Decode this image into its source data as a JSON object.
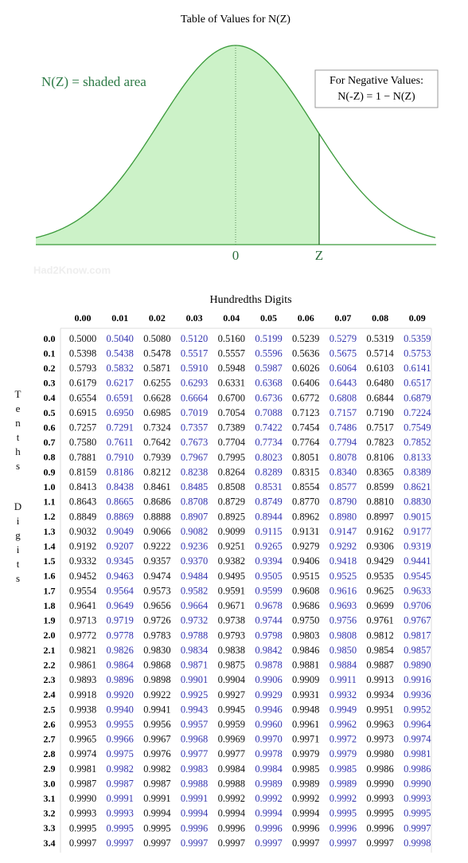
{
  "title": "Table of Values for N(Z)",
  "diagram": {
    "label": "N(Z) = shaded area",
    "note_title": "For Negative Values:",
    "note_formula": "N(-Z) = 1 − N(Z)",
    "axis_labels": [
      "0",
      "Z"
    ]
  },
  "watermark": "Had2Know.com",
  "table": {
    "column_title": "Hundredths Digits",
    "row_title": [
      "Tenths",
      "Digits"
    ],
    "columns": [
      "0.00",
      "0.01",
      "0.02",
      "0.03",
      "0.04",
      "0.05",
      "0.06",
      "0.07",
      "0.08",
      "0.09"
    ],
    "rows": [
      {
        "label": "0.0",
        "values": [
          "0.5000",
          "0.5040",
          "0.5080",
          "0.5120",
          "0.5160",
          "0.5199",
          "0.5239",
          "0.5279",
          "0.5319",
          "0.5359"
        ]
      },
      {
        "label": "0.1",
        "values": [
          "0.5398",
          "0.5438",
          "0.5478",
          "0.5517",
          "0.5557",
          "0.5596",
          "0.5636",
          "0.5675",
          "0.5714",
          "0.5753"
        ]
      },
      {
        "label": "0.2",
        "values": [
          "0.5793",
          "0.5832",
          "0.5871",
          "0.5910",
          "0.5948",
          "0.5987",
          "0.6026",
          "0.6064",
          "0.6103",
          "0.6141"
        ]
      },
      {
        "label": "0.3",
        "values": [
          "0.6179",
          "0.6217",
          "0.6255",
          "0.6293",
          "0.6331",
          "0.6368",
          "0.6406",
          "0.6443",
          "0.6480",
          "0.6517"
        ]
      },
      {
        "label": "0.4",
        "values": [
          "0.6554",
          "0.6591",
          "0.6628",
          "0.6664",
          "0.6700",
          "0.6736",
          "0.6772",
          "0.6808",
          "0.6844",
          "0.6879"
        ]
      },
      {
        "label": "0.5",
        "values": [
          "0.6915",
          "0.6950",
          "0.6985",
          "0.7019",
          "0.7054",
          "0.7088",
          "0.7123",
          "0.7157",
          "0.7190",
          "0.7224"
        ]
      },
      {
        "label": "0.6",
        "values": [
          "0.7257",
          "0.7291",
          "0.7324",
          "0.7357",
          "0.7389",
          "0.7422",
          "0.7454",
          "0.7486",
          "0.7517",
          "0.7549"
        ]
      },
      {
        "label": "0.7",
        "values": [
          "0.7580",
          "0.7611",
          "0.7642",
          "0.7673",
          "0.7704",
          "0.7734",
          "0.7764",
          "0.7794",
          "0.7823",
          "0.7852"
        ]
      },
      {
        "label": "0.8",
        "values": [
          "0.7881",
          "0.7910",
          "0.7939",
          "0.7967",
          "0.7995",
          "0.8023",
          "0.8051",
          "0.8078",
          "0.8106",
          "0.8133"
        ]
      },
      {
        "label": "0.9",
        "values": [
          "0.8159",
          "0.8186",
          "0.8212",
          "0.8238",
          "0.8264",
          "0.8289",
          "0.8315",
          "0.8340",
          "0.8365",
          "0.8389"
        ]
      },
      {
        "label": "1.0",
        "values": [
          "0.8413",
          "0.8438",
          "0.8461",
          "0.8485",
          "0.8508",
          "0.8531",
          "0.8554",
          "0.8577",
          "0.8599",
          "0.8621"
        ]
      },
      {
        "label": "1.1",
        "values": [
          "0.8643",
          "0.8665",
          "0.8686",
          "0.8708",
          "0.8729",
          "0.8749",
          "0.8770",
          "0.8790",
          "0.8810",
          "0.8830"
        ]
      },
      {
        "label": "1.2",
        "values": [
          "0.8849",
          "0.8869",
          "0.8888",
          "0.8907",
          "0.8925",
          "0.8944",
          "0.8962",
          "0.8980",
          "0.8997",
          "0.9015"
        ]
      },
      {
        "label": "1.3",
        "values": [
          "0.9032",
          "0.9049",
          "0.9066",
          "0.9082",
          "0.9099",
          "0.9115",
          "0.9131",
          "0.9147",
          "0.9162",
          "0.9177"
        ]
      },
      {
        "label": "1.4",
        "values": [
          "0.9192",
          "0.9207",
          "0.9222",
          "0.9236",
          "0.9251",
          "0.9265",
          "0.9279",
          "0.9292",
          "0.9306",
          "0.9319"
        ]
      },
      {
        "label": "1.5",
        "values": [
          "0.9332",
          "0.9345",
          "0.9357",
          "0.9370",
          "0.9382",
          "0.9394",
          "0.9406",
          "0.9418",
          "0.9429",
          "0.9441"
        ]
      },
      {
        "label": "1.6",
        "values": [
          "0.9452",
          "0.9463",
          "0.9474",
          "0.9484",
          "0.9495",
          "0.9505",
          "0.9515",
          "0.9525",
          "0.9535",
          "0.9545"
        ]
      },
      {
        "label": "1.7",
        "values": [
          "0.9554",
          "0.9564",
          "0.9573",
          "0.9582",
          "0.9591",
          "0.9599",
          "0.9608",
          "0.9616",
          "0.9625",
          "0.9633"
        ]
      },
      {
        "label": "1.8",
        "values": [
          "0.9641",
          "0.9649",
          "0.9656",
          "0.9664",
          "0.9671",
          "0.9678",
          "0.9686",
          "0.9693",
          "0.9699",
          "0.9706"
        ]
      },
      {
        "label": "1.9",
        "values": [
          "0.9713",
          "0.9719",
          "0.9726",
          "0.9732",
          "0.9738",
          "0.9744",
          "0.9750",
          "0.9756",
          "0.9761",
          "0.9767"
        ]
      },
      {
        "label": "2.0",
        "values": [
          "0.9772",
          "0.9778",
          "0.9783",
          "0.9788",
          "0.9793",
          "0.9798",
          "0.9803",
          "0.9808",
          "0.9812",
          "0.9817"
        ]
      },
      {
        "label": "2.1",
        "values": [
          "0.9821",
          "0.9826",
          "0.9830",
          "0.9834",
          "0.9838",
          "0.9842",
          "0.9846",
          "0.9850",
          "0.9854",
          "0.9857"
        ]
      },
      {
        "label": "2.2",
        "values": [
          "0.9861",
          "0.9864",
          "0.9868",
          "0.9871",
          "0.9875",
          "0.9878",
          "0.9881",
          "0.9884",
          "0.9887",
          "0.9890"
        ]
      },
      {
        "label": "2.3",
        "values": [
          "0.9893",
          "0.9896",
          "0.9898",
          "0.9901",
          "0.9904",
          "0.9906",
          "0.9909",
          "0.9911",
          "0.9913",
          "0.9916"
        ]
      },
      {
        "label": "2.4",
        "values": [
          "0.9918",
          "0.9920",
          "0.9922",
          "0.9925",
          "0.9927",
          "0.9929",
          "0.9931",
          "0.9932",
          "0.9934",
          "0.9936"
        ]
      },
      {
        "label": "2.5",
        "values": [
          "0.9938",
          "0.9940",
          "0.9941",
          "0.9943",
          "0.9945",
          "0.9946",
          "0.9948",
          "0.9949",
          "0.9951",
          "0.9952"
        ]
      },
      {
        "label": "2.6",
        "values": [
          "0.9953",
          "0.9955",
          "0.9956",
          "0.9957",
          "0.9959",
          "0.9960",
          "0.9961",
          "0.9962",
          "0.9963",
          "0.9964"
        ]
      },
      {
        "label": "2.7",
        "values": [
          "0.9965",
          "0.9966",
          "0.9967",
          "0.9968",
          "0.9969",
          "0.9970",
          "0.9971",
          "0.9972",
          "0.9973",
          "0.9974"
        ]
      },
      {
        "label": "2.8",
        "values": [
          "0.9974",
          "0.9975",
          "0.9976",
          "0.9977",
          "0.9977",
          "0.9978",
          "0.9979",
          "0.9979",
          "0.9980",
          "0.9981"
        ]
      },
      {
        "label": "2.9",
        "values": [
          "0.9981",
          "0.9982",
          "0.9982",
          "0.9983",
          "0.9984",
          "0.9984",
          "0.9985",
          "0.9985",
          "0.9986",
          "0.9986"
        ]
      },
      {
        "label": "3.0",
        "values": [
          "0.9987",
          "0.9987",
          "0.9987",
          "0.9988",
          "0.9988",
          "0.9989",
          "0.9989",
          "0.9989",
          "0.9990",
          "0.9990"
        ]
      },
      {
        "label": "3.1",
        "values": [
          "0.9990",
          "0.9991",
          "0.9991",
          "0.9991",
          "0.9992",
          "0.9992",
          "0.9992",
          "0.9992",
          "0.9993",
          "0.9993"
        ]
      },
      {
        "label": "3.2",
        "values": [
          "0.9993",
          "0.9993",
          "0.9994",
          "0.9994",
          "0.9994",
          "0.9994",
          "0.9994",
          "0.9995",
          "0.9995",
          "0.9995"
        ]
      },
      {
        "label": "3.3",
        "values": [
          "0.9995",
          "0.9995",
          "0.9995",
          "0.9996",
          "0.9996",
          "0.9996",
          "0.9996",
          "0.9996",
          "0.9996",
          "0.9997"
        ]
      },
      {
        "label": "3.4",
        "values": [
          "0.9997",
          "0.9997",
          "0.9997",
          "0.9997",
          "0.9997",
          "0.9997",
          "0.9997",
          "0.9997",
          "0.9997",
          "0.9998"
        ]
      }
    ]
  }
}
